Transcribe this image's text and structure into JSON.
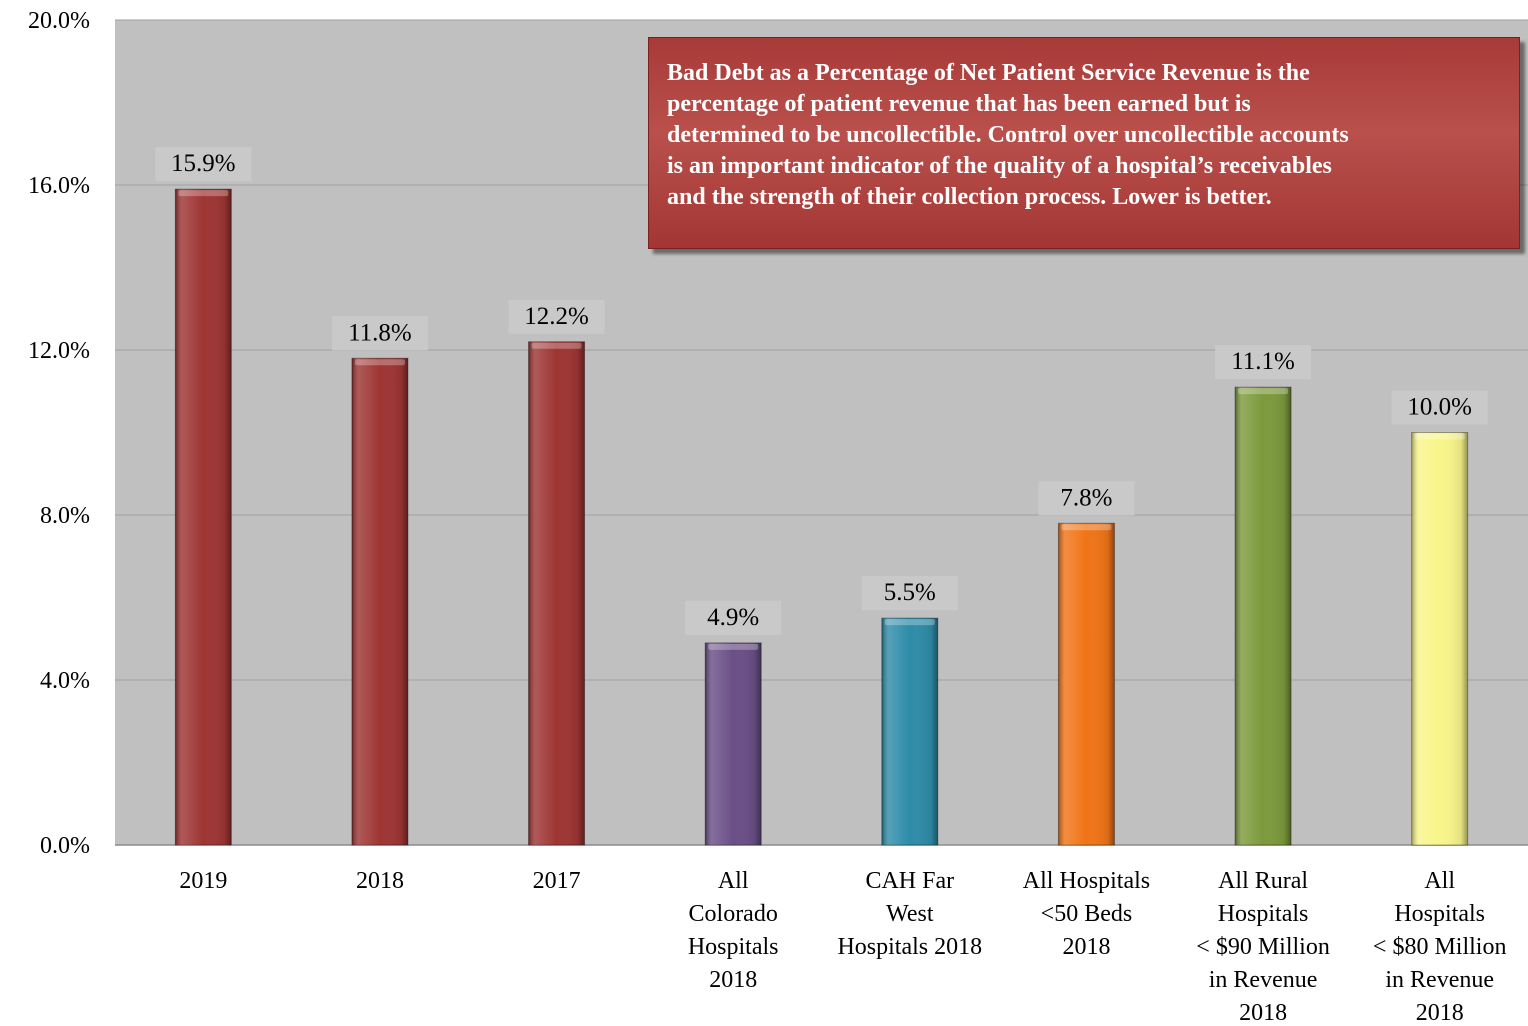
{
  "chart_data": {
    "type": "bar",
    "categories": [
      "2019",
      "2018",
      "2017",
      "All Colorado Hospitals 2018",
      "CAH Far West Hospitals 2018",
      "All Hospitals <50 Beds 2018",
      "All Rural Hospitals < $90 Million in Revenue 2018",
      "All Hospitals < $80 Million in Revenue 2018"
    ],
    "category_lines": [
      [
        "2019"
      ],
      [
        "2018"
      ],
      [
        "2017"
      ],
      [
        "All",
        "Colorado",
        "Hospitals",
        "2018"
      ],
      [
        "CAH Far",
        "West",
        "Hospitals 2018"
      ],
      [
        "All Hospitals",
        "<50 Beds",
        "2018"
      ],
      [
        "All Rural",
        "Hospitals",
        "< $90 Million",
        "in Revenue",
        "2018"
      ],
      [
        "All",
        "Hospitals",
        "< $80 Million",
        "in Revenue",
        "2018"
      ]
    ],
    "values": [
      15.9,
      11.8,
      12.2,
      4.9,
      5.5,
      7.8,
      11.1,
      10.0
    ],
    "data_labels": [
      "15.9%",
      "11.8%",
      "12.2%",
      "4.9%",
      "5.5%",
      "7.8%",
      "11.1%",
      "10.0%"
    ],
    "bar_colors": [
      "#9e3533",
      "#9e3533",
      "#9e3533",
      "#6a4f87",
      "#2e8ca8",
      "#f07417",
      "#7c9a3c",
      "#f8f58a"
    ],
    "ylim": [
      0,
      20
    ],
    "yticks": [
      "0.0%",
      "4.0%",
      "8.0%",
      "12.0%",
      "16.0%",
      "20.0%"
    ],
    "ytick_values": [
      0,
      4,
      8,
      12,
      16,
      20
    ],
    "grid": true,
    "title": "",
    "xlabel": "",
    "ylabel": ""
  },
  "annotation": {
    "lines": [
      "Bad Debt as a Percentage of Net Patient Service Revenue is the",
      "percentage of patient revenue that has been earned but is",
      "determined to be uncollectible. Control over uncollectible accounts",
      "is an important indicator of the quality of a hospital’s receivables",
      "and the strength of their collection process. Lower is better."
    ],
    "background": "#a83a38"
  },
  "colors": {
    "plot_background": "#c0c0c0",
    "gridline": "#a0a0a0"
  }
}
